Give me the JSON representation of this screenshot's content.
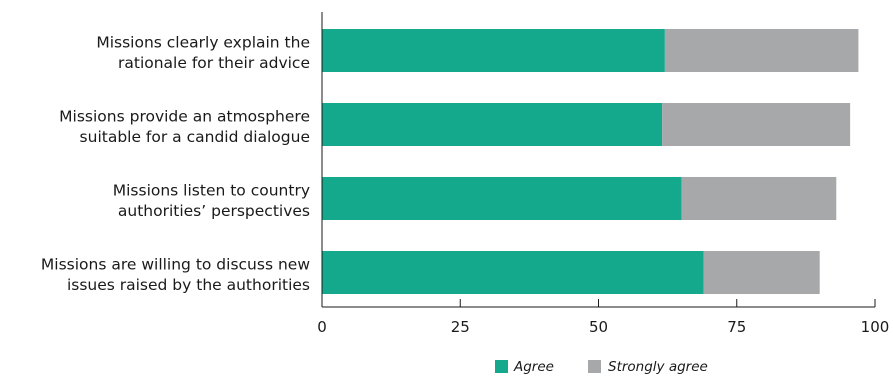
{
  "chart_data": {
    "type": "bar",
    "orientation": "horizontal",
    "stacked": true,
    "categories": [
      [
        "Missions clearly explain the",
        "rationale for their advice"
      ],
      [
        "Missions provide an atmosphere",
        "suitable for a candid dialogue"
      ],
      [
        "Missions listen to country",
        "authorities’ perspectives"
      ],
      [
        "Missions are willing to discuss new",
        "issues raised by the authorities"
      ]
    ],
    "series": [
      {
        "name": "Agree",
        "color": "#14a88c",
        "values": [
          62,
          61.5,
          65,
          69
        ]
      },
      {
        "name": "Strongly agree",
        "color": "#a7a8aa",
        "values": [
          35,
          34,
          28,
          21
        ]
      }
    ],
    "xlim": [
      0,
      100
    ],
    "xticks": [
      0,
      25,
      50,
      75,
      100
    ],
    "tick_labels": [
      "0",
      "25",
      "50",
      "75",
      "100"
    ],
    "grid": false,
    "legend_position": "bottom"
  }
}
